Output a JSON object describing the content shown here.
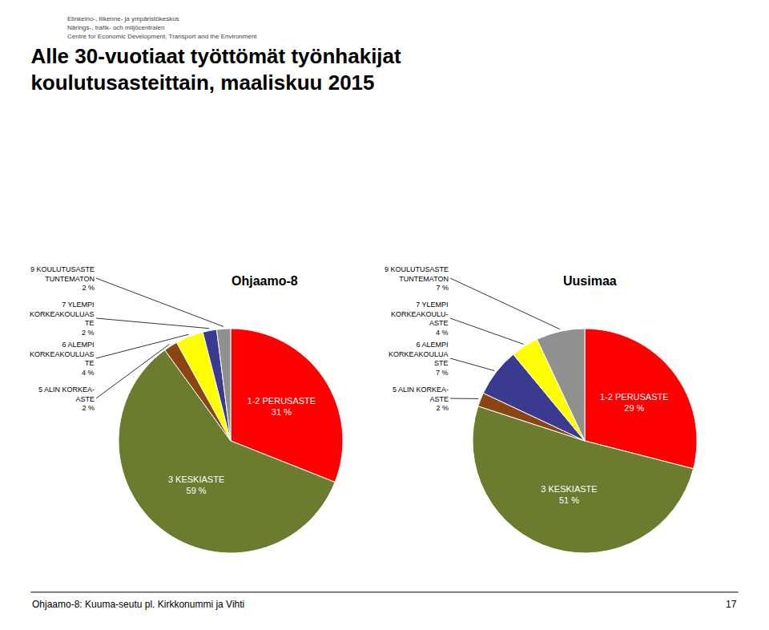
{
  "title": "Alle 30-vuotiaat työttömät työnhakijat\nkoulutusasteittain, maaliskuu 2015",
  "annotations": [
    "Elinkeino-, liikenne- ja ympäristökeskus",
    "Närings-, trafik- och miljöcentralen",
    "Centre for Economic Development, Transport and the Environment",
    "Ohjaamo-8: Kuuma-seutu pl. Kirkkonummi ja Vihti",
    "17"
  ],
  "chart_data": [
    {
      "type": "pie",
      "title": "Ohjaamo-8",
      "categories": [
        "1-2 PERUSASTE",
        "3 KESKIASTE",
        "5 ALIN KORKEA-\nASTE",
        "6 ALEMPI\nKORKEAKOULUAS\nTE",
        "7 YLEMPI\nKORKEAKOULUAS\nTE",
        "9 KOULUTUSASTE\nTUNTEMATON"
      ],
      "values": [
        31,
        59,
        2,
        4,
        2,
        2
      ],
      "value_labels": [
        "31 %",
        "59 %",
        "2 %",
        "4 %",
        "2 %",
        "2 %"
      ],
      "colors": [
        "#ff0000",
        "#6b7c2e",
        "#8b4513",
        "#ffff00",
        "#3a3a90",
        "#909090"
      ]
    },
    {
      "type": "pie",
      "title": "Uusimaa",
      "categories": [
        "1-2 PERUSASTE",
        "3 KESKIASTE",
        "5 ALIN KORKEA-\nASTE",
        "6 ALEMPI\nKORKEAKOULUA\nSTE",
        "7 YLEMPI\nKORKEAKOULU-\nASTE",
        "9 KOULUTUSASTE\nTUNTEMATON"
      ],
      "values": [
        29,
        51,
        2,
        7,
        4,
        7
      ],
      "value_labels": [
        "29 %",
        "51 %",
        "2 %",
        "7 %",
        "4 %",
        "7 %"
      ],
      "colors": [
        "#ff0000",
        "#6b7c2e",
        "#8b4513",
        "#3a3a90",
        "#ffff00",
        "#909090"
      ]
    }
  ]
}
